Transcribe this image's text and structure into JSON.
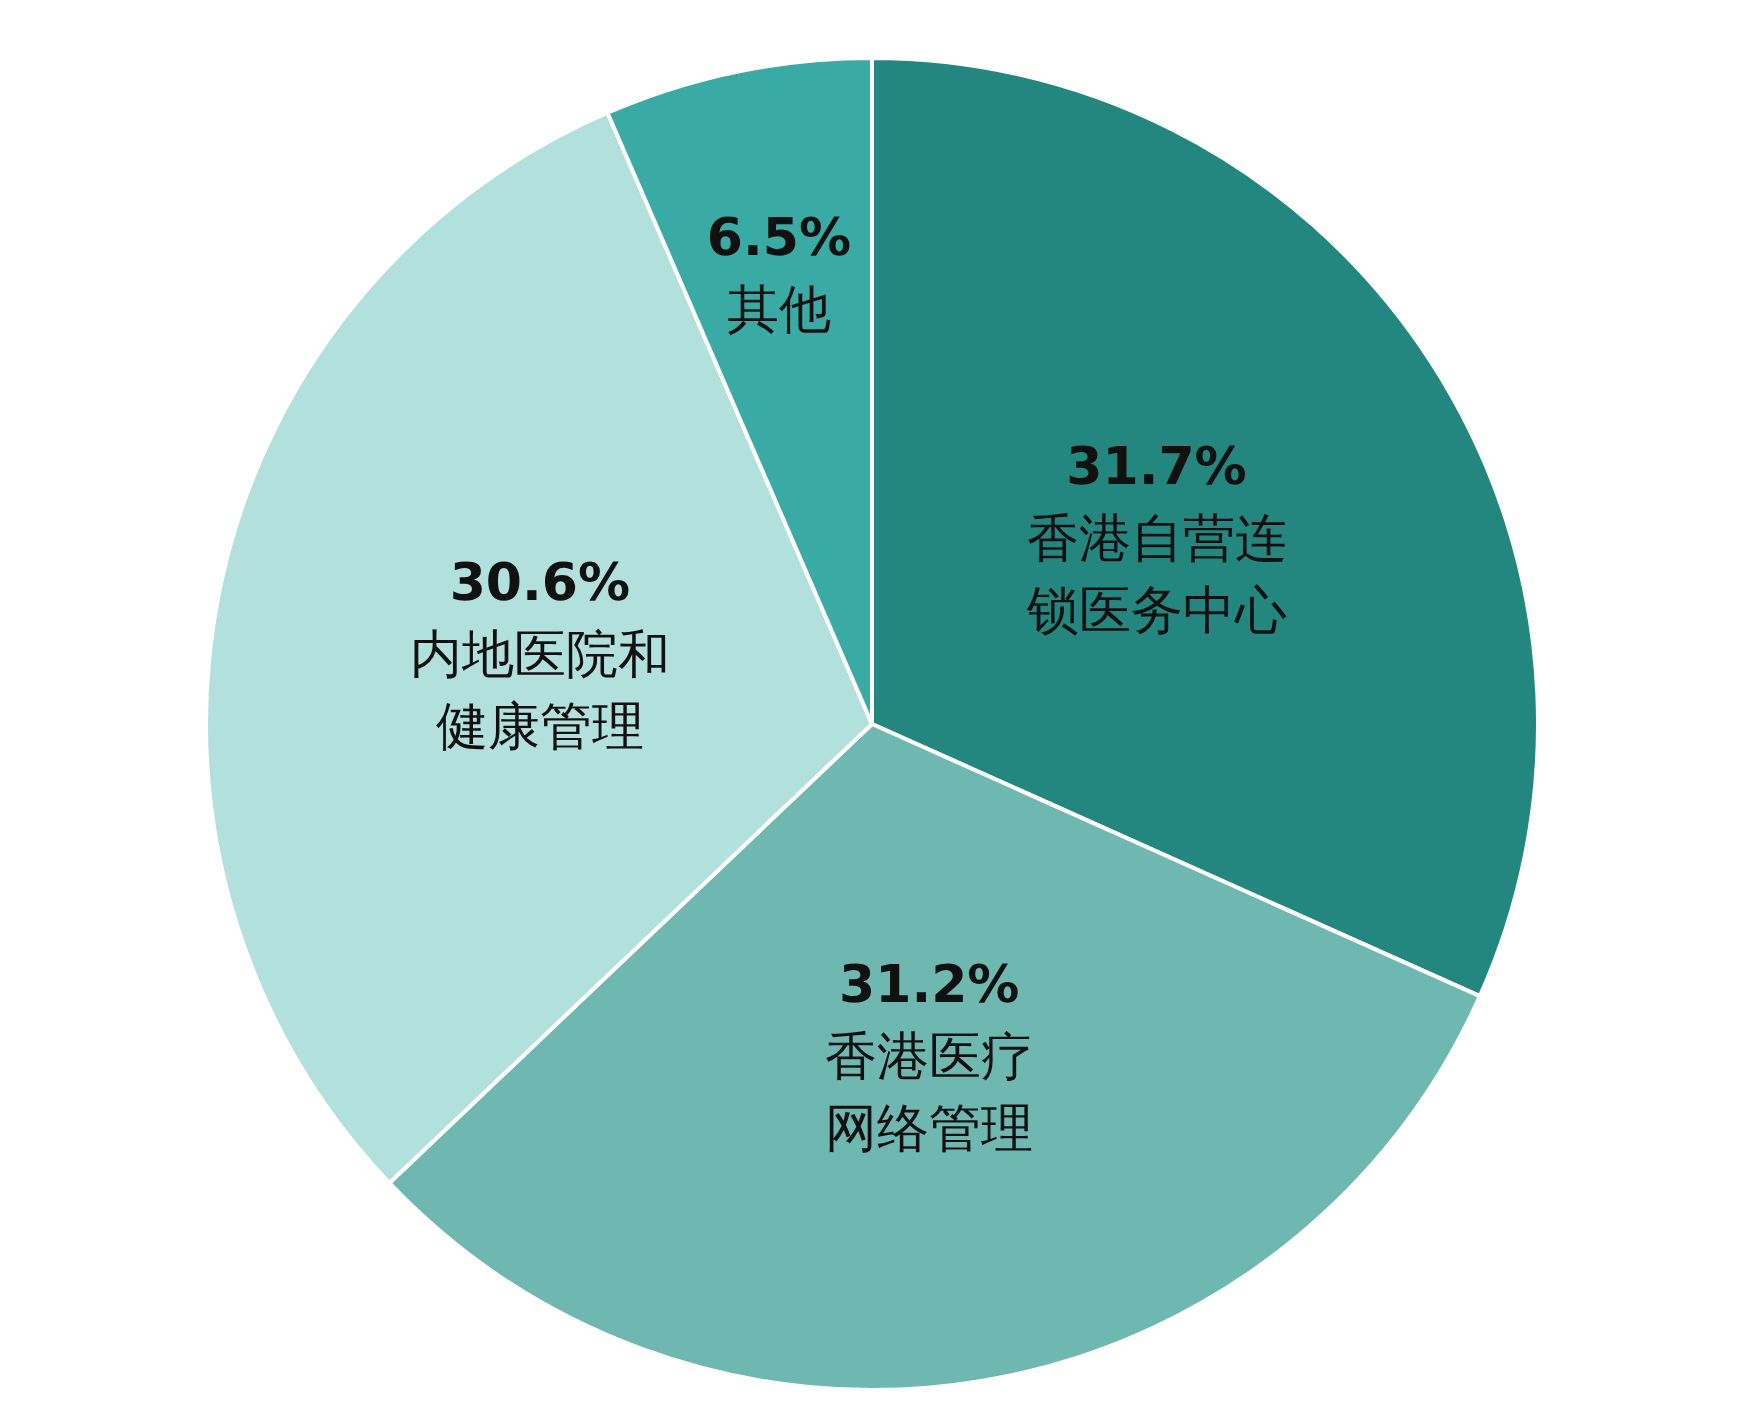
{
  "chart_data": {
    "type": "pie",
    "categories": [
      "香港自营连锁医务中心",
      "香港医疗网络管理",
      "内地医院和健康管理",
      "其他"
    ],
    "values": [
      31.7,
      31.2,
      30.6,
      6.5
    ],
    "value_labels": [
      "31.7%",
      "31.2%",
      "30.6%",
      "6.5%"
    ],
    "colors": [
      "#23877f",
      "#6fb8b2",
      "#b2e0dc",
      "#3aaba4"
    ],
    "legend": false
  }
}
